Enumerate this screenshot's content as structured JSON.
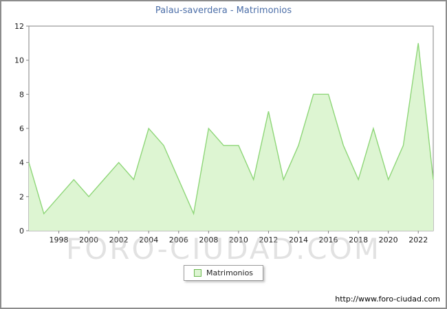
{
  "title": "Palau-saverdera - Matrimonios",
  "legend": {
    "label": "Matrimonios"
  },
  "watermark": "FORO-CIUDAD.COM",
  "footer": {
    "url": "http://www.foro-ciudad.com"
  },
  "chart_data": {
    "type": "area",
    "title": "Palau-saverdera - Matrimonios",
    "xlabel": "",
    "ylabel": "",
    "ylim": [
      0,
      12
    ],
    "y_ticks": [
      0,
      2,
      4,
      6,
      8,
      10,
      12
    ],
    "x_ticks": [
      1998,
      2000,
      2002,
      2004,
      2006,
      2008,
      2010,
      2012,
      2014,
      2016,
      2018,
      2020,
      2022
    ],
    "legend_entries": [
      "Matrimonios"
    ],
    "grid": false,
    "years": [
      1996,
      1997,
      1998,
      1999,
      2000,
      2001,
      2002,
      2003,
      2004,
      2005,
      2006,
      2007,
      2008,
      2009,
      2010,
      2011,
      2012,
      2013,
      2014,
      2015,
      2016,
      2017,
      2018,
      2019,
      2020,
      2021,
      2022,
      2023
    ],
    "values": [
      4,
      1,
      2,
      3,
      2,
      3,
      4,
      3,
      6,
      5,
      3,
      1,
      6,
      5,
      5,
      3,
      7,
      3,
      5,
      8,
      8,
      5,
      3,
      6,
      3,
      5,
      11,
      3
    ],
    "colors": {
      "line": "#8ed678",
      "fill": "#ddf5d2",
      "axis": "#808080",
      "tick_text": "#1a1a1a",
      "title": "#4a6da7",
      "legend_border": "#6ab84e"
    }
  }
}
